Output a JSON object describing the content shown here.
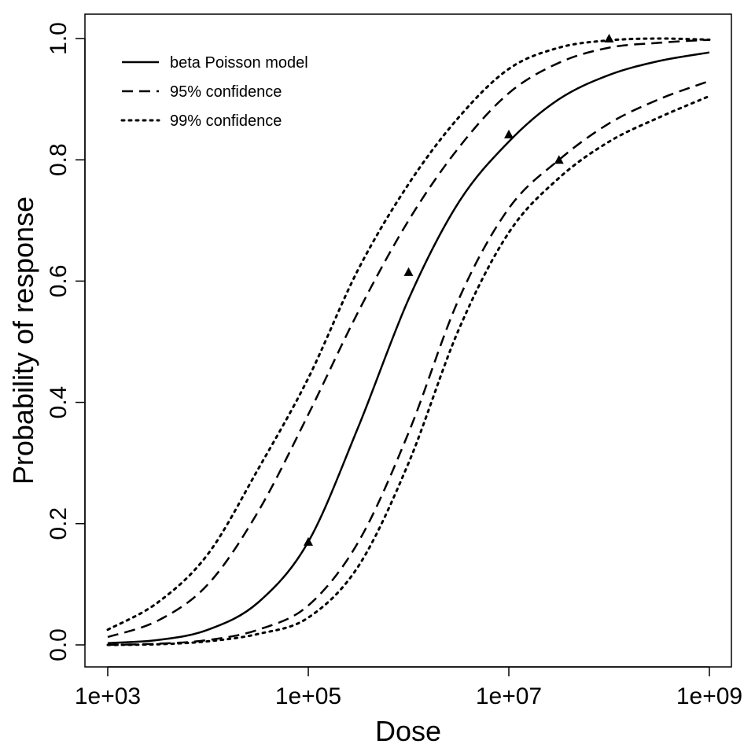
{
  "chart_data": {
    "type": "line",
    "xlabel": "Dose",
    "ylabel": "Probability of response",
    "x_scale": "log10",
    "xlim": [
      1000,
      1000000000
    ],
    "ylim": [
      0.0,
      1.0
    ],
    "x_ticks": [
      {
        "value": 1000,
        "label": "1e+03"
      },
      {
        "value": 100000,
        "label": "1e+05"
      },
      {
        "value": 10000000,
        "label": "1e+07"
      },
      {
        "value": 1000000000,
        "label": "1e+09"
      }
    ],
    "y_ticks": [
      {
        "value": 0.0,
        "label": "0.0"
      },
      {
        "value": 0.2,
        "label": "0.2"
      },
      {
        "value": 0.4,
        "label": "0.4"
      },
      {
        "value": 0.6,
        "label": "0.6"
      },
      {
        "value": 0.8,
        "label": "0.8"
      },
      {
        "value": 1.0,
        "label": "1.0"
      }
    ],
    "grid": false,
    "legend_position": "top-left",
    "series": [
      {
        "name": "beta Poisson model",
        "style": "solid",
        "x": [
          1000,
          3162,
          10000,
          31623,
          100000,
          316228,
          1000000,
          3162278,
          10000000,
          31622777,
          100000000,
          316227766,
          1000000000
        ],
        "y": [
          0.003,
          0.008,
          0.025,
          0.07,
          0.17,
          0.36,
          0.57,
          0.73,
          0.83,
          0.9,
          0.94,
          0.963,
          0.977
        ]
      },
      {
        "name": "95% confidence",
        "style": "dashed",
        "x": [
          1000,
          3162,
          10000,
          31623,
          100000,
          316228,
          1000000,
          3162278,
          10000000,
          31622777,
          100000000,
          316227766,
          1000000000
        ],
        "y": [
          0.013,
          0.04,
          0.1,
          0.22,
          0.38,
          0.55,
          0.7,
          0.82,
          0.91,
          0.96,
          0.985,
          0.993,
          0.998
        ]
      },
      {
        "name": "95% confidence",
        "style": "dashed",
        "x": [
          1000,
          3162,
          10000,
          31623,
          100000,
          316228,
          1000000,
          3162278,
          10000000,
          31622777,
          100000000,
          316227766,
          1000000000
        ],
        "y": [
          0.0,
          0.002,
          0.008,
          0.025,
          0.065,
          0.17,
          0.35,
          0.57,
          0.72,
          0.8,
          0.86,
          0.9,
          0.93
        ]
      },
      {
        "name": "99% confidence",
        "style": "dotted",
        "x": [
          1000,
          3162,
          10000,
          31623,
          100000,
          316228,
          1000000,
          3162278,
          10000000,
          31622777,
          100000000,
          316227766,
          1000000000
        ],
        "y": [
          0.025,
          0.07,
          0.15,
          0.29,
          0.44,
          0.62,
          0.76,
          0.87,
          0.95,
          0.985,
          0.997,
          1.0,
          0.998
        ]
      },
      {
        "name": "99% confidence",
        "style": "dotted",
        "x": [
          1000,
          3162,
          10000,
          31623,
          100000,
          316228,
          1000000,
          3162278,
          10000000,
          31622777,
          100000000,
          316227766,
          1000000000
        ],
        "y": [
          0.0,
          0.001,
          0.006,
          0.018,
          0.045,
          0.13,
          0.3,
          0.52,
          0.68,
          0.77,
          0.83,
          0.87,
          0.905
        ]
      }
    ],
    "observations": {
      "marker": "triangle",
      "x": [
        100000,
        1000000,
        10000000,
        31622777,
        100000000
      ],
      "y": [
        0.17,
        0.615,
        0.842,
        0.8,
        1.0
      ]
    },
    "legend": [
      {
        "label": "beta Poisson model",
        "style": "solid"
      },
      {
        "label": "95% confidence",
        "style": "dashed"
      },
      {
        "label": "99% confidence",
        "style": "dotted"
      }
    ]
  }
}
